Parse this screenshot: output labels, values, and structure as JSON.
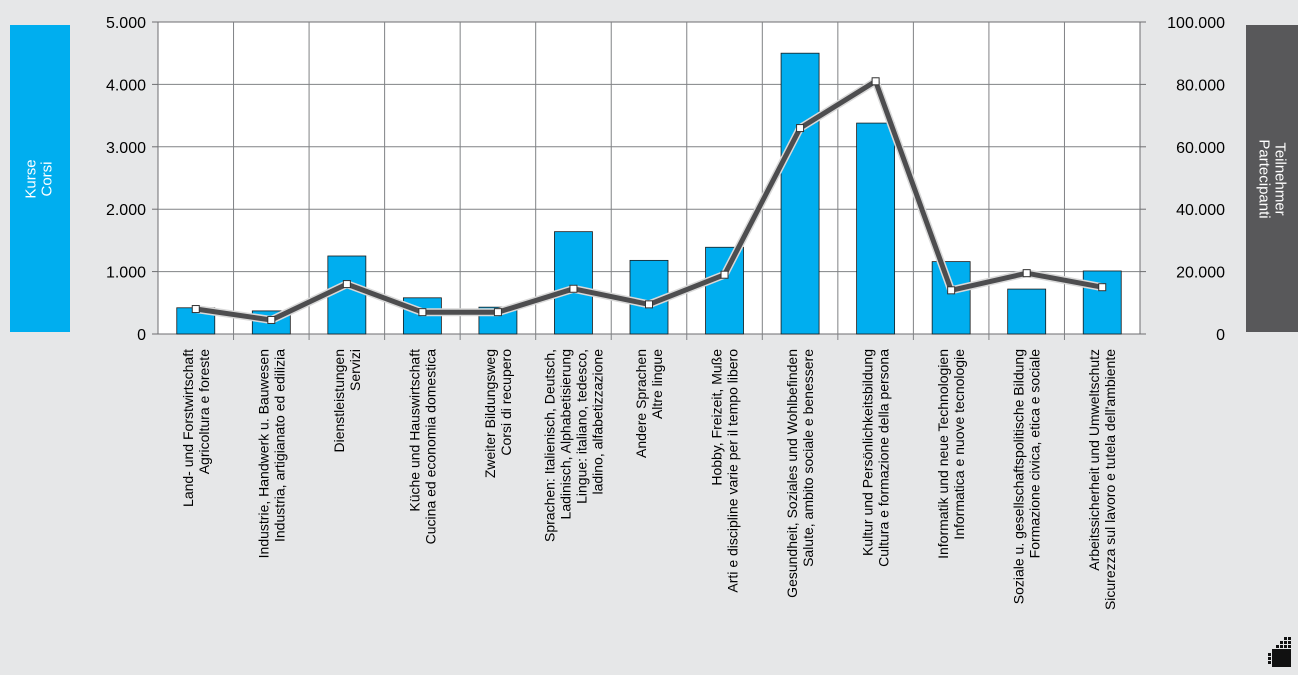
{
  "left_axis_label": [
    "Kurse",
    "Corsi"
  ],
  "right_axis_label": [
    "Teilnehmer",
    "Partecipanti"
  ],
  "colors": {
    "bar": "#00aeef",
    "line": "#4d4d4f",
    "left_box": "#00aeef",
    "right_box": "#58585a",
    "background": "#e6e7e8"
  },
  "chart_data": {
    "type": "bar",
    "categories": [
      [
        "Land- und Forstwirtschaft",
        "Agricoltura e foreste"
      ],
      [
        "Industrie, Handwerk u. Bauwesen",
        "Industria, artigianato ed edilizia"
      ],
      [
        "Dienstleistungen",
        "Servizi"
      ],
      [
        "Küche und Hauswirtschaft",
        "Cucina ed economia domestica"
      ],
      [
        "Zweiter Bildungsweg",
        "Corsi di recupero"
      ],
      [
        "Sprachen: Italienisch, Deutsch,",
        "Ladinisch, Alphabetisierung",
        "Lingue: italiano, tedesco,",
        "ladino, alfabetizzazione"
      ],
      [
        "Andere Sprachen",
        "Altre lingue"
      ],
      [
        "Hobby, Freizeit, Muße",
        "Arti e discipline varie per il tempo libero"
      ],
      [
        "Gesundheit, Soziales und Wohlbefinden",
        "Salute, ambito sociale e benessere"
      ],
      [
        "Kultur und Persönlichkeitsbildung",
        "Cultura e formazione della persona"
      ],
      [
        "Informatik und neue Technologien",
        "Informatica e nuove tecnologie"
      ],
      [
        "Soziale u. gesellschaftspolitische Bildung",
        "Formazione civica, etica e sociale"
      ],
      [
        "Arbeitssicherheit und Umweltschutz",
        "Sicurezza sul lavoro e tutela dell'ambiente"
      ]
    ],
    "series": [
      {
        "name": "",
        "axis": "left",
        "type": "bar",
        "values": [
          420,
          370,
          1250,
          580,
          430,
          1640,
          1180,
          1390,
          4500,
          3380,
          1160,
          720,
          1010
        ]
      },
      {
        "name": "",
        "axis": "right",
        "type": "line",
        "values": [
          8000,
          4500,
          16000,
          7000,
          7000,
          14500,
          9500,
          19000,
          66000,
          81000,
          14000,
          19500,
          15000
        ]
      }
    ],
    "y_left": {
      "ticks": [
        0,
        1000,
        2000,
        3000,
        4000,
        5000
      ],
      "tick_labels": [
        "0",
        "1.000",
        "2.000",
        "3.000",
        "4.000",
        "5.000"
      ],
      "lim": [
        0,
        5000
      ]
    },
    "y_right": {
      "ticks": [
        0,
        20000,
        40000,
        60000,
        80000,
        100000
      ],
      "tick_labels": [
        "0",
        "20.000",
        "40.000",
        "60.000",
        "80.000",
        "100.000"
      ],
      "lim": [
        0,
        100000
      ]
    },
    "grid": true,
    "legend": "none"
  }
}
